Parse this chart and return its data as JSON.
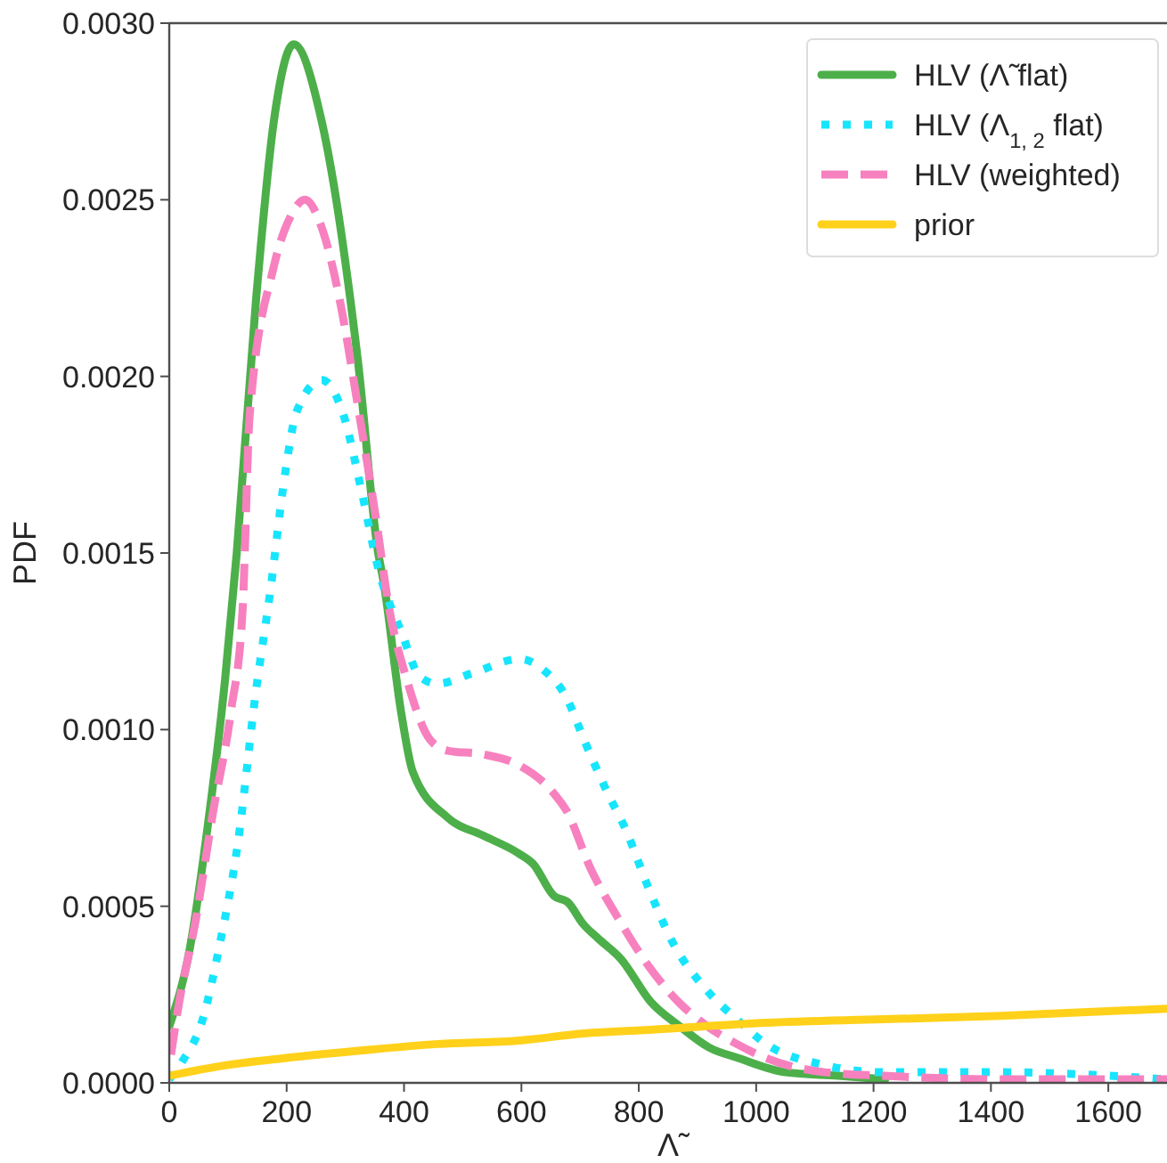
{
  "chart_data": {
    "type": "line",
    "xlabel": "Λ̃",
    "ylabel": "PDF",
    "xlim": [
      0,
      1700
    ],
    "ylim": [
      0,
      0.003
    ],
    "xticks": [
      0,
      200,
      400,
      600,
      800,
      1000,
      1200,
      1400,
      1600
    ],
    "yticks": [
      {
        "value": 0,
        "label": "0.0000"
      },
      {
        "value": 0.0005,
        "label": "0.0005"
      },
      {
        "value": 0.001,
        "label": "0.0010"
      },
      {
        "value": 0.0015,
        "label": "0.0015"
      },
      {
        "value": 0.002,
        "label": "0.0020"
      },
      {
        "value": 0.0025,
        "label": "0.0025"
      },
      {
        "value": 0.003,
        "label": "0.0030"
      }
    ],
    "grid": false,
    "legend": "top right",
    "series": [
      {
        "name": "HLV (Λ̃ flat)",
        "color": "#4daf4a",
        "line_style": "solid",
        "x": [
          0,
          35,
          65,
          95,
          115,
          148,
          178,
          212,
          260,
          321,
          356,
          365,
          395,
          415,
          475,
          535,
          595,
          620,
          655,
          680,
          705,
          730,
          770,
          820,
          870,
          920,
          970,
          1050,
          1140,
          1220
        ],
        "values": [
          0.00016,
          0.00038,
          0.00072,
          0.00114,
          0.0015,
          0.00222,
          0.00272,
          0.00294,
          0.00272,
          0.00205,
          0.0015,
          0.00142,
          0.00105,
          0.00088,
          0.00075,
          0.0007,
          0.00065,
          0.00062,
          0.00053,
          0.00051,
          0.00045,
          0.00041,
          0.00035,
          0.00023,
          0.00016,
          0.0001,
          7e-05,
          3e-05,
          2e-05,
          1e-05
        ]
      },
      {
        "name": "HLV (Λ$_{1, 2}$ flat)",
        "color": "#17e5fd",
        "line_style": "dotted",
        "x": [
          0,
          22,
          57,
          87,
          117,
          147,
          172,
          197,
          217,
          260,
          297,
          327,
          357,
          397,
          427,
          457,
          517,
          597,
          637,
          677,
          707,
          747,
          777,
          817,
          857,
          917,
          967,
          1017,
          1117,
          1217,
          1417,
          1700
        ],
        "values": [
          1e-05,
          6e-05,
          0.00018,
          0.0004,
          0.00068,
          0.0011,
          0.00139,
          0.00172,
          0.0019,
          0.00199,
          0.00189,
          0.00168,
          0.00145,
          0.00127,
          0.00115,
          0.00113,
          0.00116,
          0.0012,
          0.00117,
          0.00109,
          0.00097,
          0.00082,
          0.00072,
          0.00055,
          0.0004,
          0.00026,
          0.00018,
          0.00011,
          5e-05,
          3e-05,
          3e-05,
          1e-05
        ]
      },
      {
        "name": "HLV (weighted)",
        "color": "#f781bf",
        "line_style": "dashed",
        "x": [
          3,
          15,
          45,
          75,
          105,
          125,
          137,
          178,
          209,
          231,
          260,
          290,
          321,
          352,
          375,
          405,
          445,
          475,
          535,
          595,
          655,
          677,
          717,
          767,
          817,
          867,
          917,
          967,
          1017,
          1117,
          1217,
          1417,
          1700
        ],
        "values": [
          8e-05,
          0.00021,
          0.00046,
          0.00077,
          0.00105,
          0.00134,
          0.00189,
          0.00231,
          0.00246,
          0.0025,
          0.00242,
          0.00222,
          0.00192,
          0.0016,
          0.00134,
          0.00114,
          0.00097,
          0.00094,
          0.00093,
          0.0009,
          0.00082,
          0.00077,
          0.00061,
          0.00046,
          0.00033,
          0.00023,
          0.00016,
          0.00011,
          7e-05,
          3e-05,
          2e-05,
          1e-05,
          1e-05
        ]
      },
      {
        "name": "prior",
        "color": "#ffd11a",
        "line_style": "solid",
        "x": [
          0,
          97,
          197,
          317,
          457,
          597,
          707,
          817,
          1017,
          1217,
          1417,
          1700
        ],
        "values": [
          2e-05,
          5e-05,
          7e-05,
          9e-05,
          0.00011,
          0.00012,
          0.00014,
          0.00015,
          0.00017,
          0.00018,
          0.00019,
          0.00021
        ]
      }
    ]
  }
}
